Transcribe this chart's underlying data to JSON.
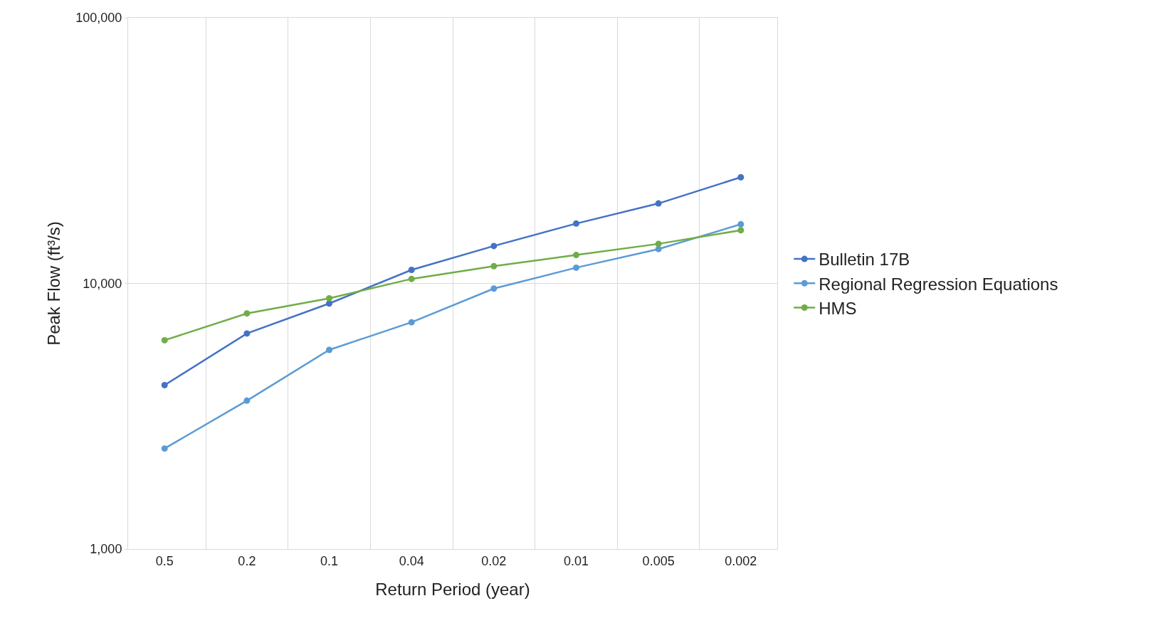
{
  "chart_data": {
    "type": "line",
    "xlabel": "Return Period (year)",
    "ylabel": "Peak Flow (ft³/s)",
    "categories": [
      "0.5",
      "0.2",
      "0.1",
      "0.04",
      "0.02",
      "0.01",
      "0.005",
      "0.002"
    ],
    "series": [
      {
        "name": "Bulletin 17B",
        "color": "#4472c4",
        "values": [
          4140,
          6480,
          8400,
          11240,
          13830,
          16800,
          20000,
          25100
        ]
      },
      {
        "name": "Regional Regression Equations",
        "color": "#5b9bd5",
        "values": [
          2390,
          3620,
          5620,
          7140,
          9560,
          11460,
          13470,
          16700
        ]
      },
      {
        "name": "HMS",
        "color": "#70ad47",
        "values": [
          6110,
          7710,
          8790,
          10400,
          11610,
          12790,
          14090,
          15850
        ]
      }
    ],
    "log": "y",
    "ylim": [
      1000,
      100000
    ],
    "yticks": [
      {
        "value": 1000,
        "label": "1,000"
      },
      {
        "value": 10000,
        "label": "10,000"
      },
      {
        "value": 100000,
        "label": "100,000"
      }
    ],
    "grid": true,
    "legend": "right",
    "marker": "circle",
    "line_style": "solid"
  }
}
